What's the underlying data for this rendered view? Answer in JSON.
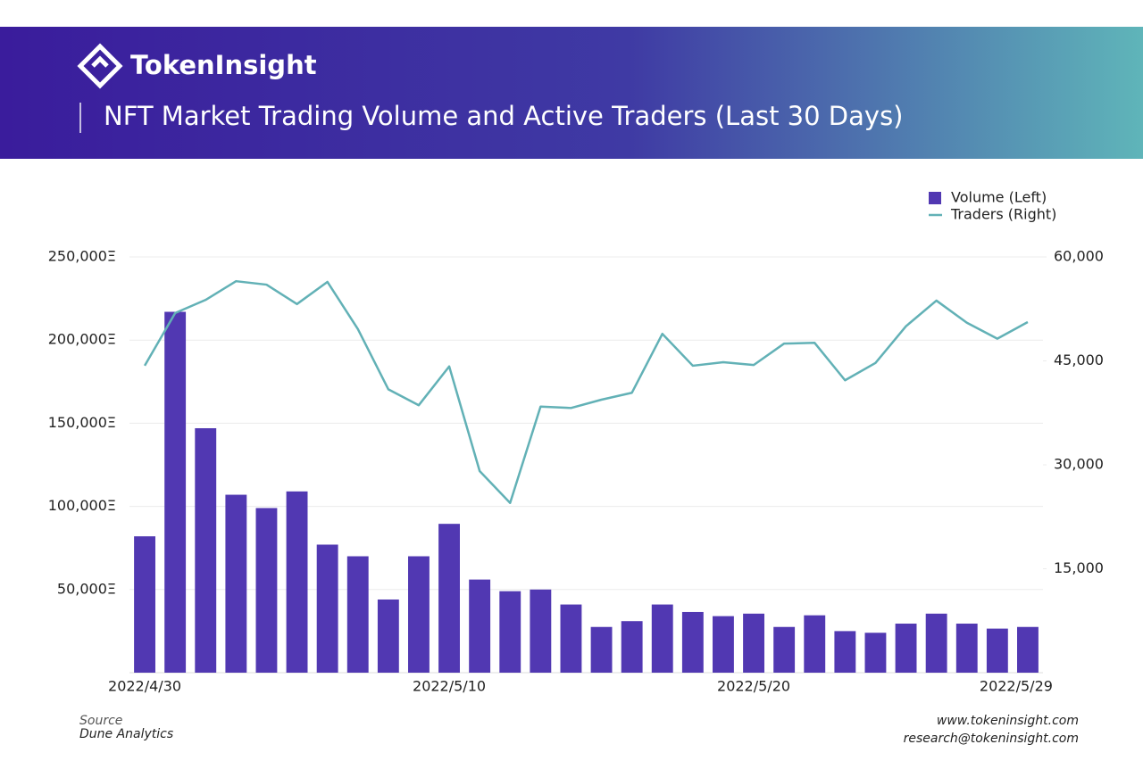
{
  "header": {
    "brand": "TokenInsight"
  },
  "chart_data": {
    "type": "bar-line",
    "title": "NFT Market Trading Volume and Active Traders (Last 30 Days)",
    "categories": [
      "2022/4/30",
      null,
      null,
      null,
      null,
      null,
      null,
      null,
      null,
      null,
      "2022/5/10",
      null,
      null,
      null,
      null,
      null,
      null,
      null,
      null,
      null,
      "2022/5/20",
      null,
      null,
      null,
      null,
      null,
      null,
      null,
      null,
      "2022/5/29"
    ],
    "series": [
      {
        "name": "Volume (Left)",
        "type": "bar",
        "color": "#5138b2",
        "values": [
          82000,
          217000,
          147000,
          107000,
          99000,
          109000,
          77000,
          70000,
          44000,
          70000,
          89500,
          56000,
          49000,
          50000,
          41000,
          27500,
          31000,
          41000,
          36500,
          34000,
          35500,
          27500,
          34500,
          25000,
          24000,
          29500,
          35500,
          29500,
          26500,
          27500
        ]
      },
      {
        "name": "Traders (Right)",
        "type": "line",
        "axis": "y2",
        "color": "#62b1b6",
        "values": [
          44300,
          51900,
          53800,
          56500,
          56000,
          53200,
          56400,
          49600,
          40900,
          38600,
          44200,
          29100,
          24500,
          38400,
          38200,
          39400,
          40400,
          48900,
          44300,
          44800,
          44400,
          47500,
          47600,
          42200,
          44700,
          50000,
          53700,
          50500,
          48200,
          50600
        ]
      }
    ],
    "ylim": [
      0,
      250000
    ],
    "yticks": [
      {
        "value": 50000,
        "label": "50,000Ξ"
      },
      {
        "value": 100000,
        "label": "100,000Ξ"
      },
      {
        "value": 150000,
        "label": "150,000Ξ"
      },
      {
        "value": 200000,
        "label": "200,000Ξ"
      },
      {
        "value": 250000,
        "label": "250,000Ξ"
      }
    ],
    "y2lim": [
      0,
      60000
    ],
    "y2ticks": [
      {
        "value": 15000,
        "label": "15,000"
      },
      {
        "value": 30000,
        "label": "30,000"
      },
      {
        "value": 45000,
        "label": "45,000"
      },
      {
        "value": 60000,
        "label": "60,000"
      }
    ],
    "grid": true,
    "legend": "top-right"
  },
  "footer": {
    "source_label": "Source",
    "source": "Dune Analytics",
    "website": "www.tokeninsight.com",
    "email": "research@tokeninsight.com"
  }
}
